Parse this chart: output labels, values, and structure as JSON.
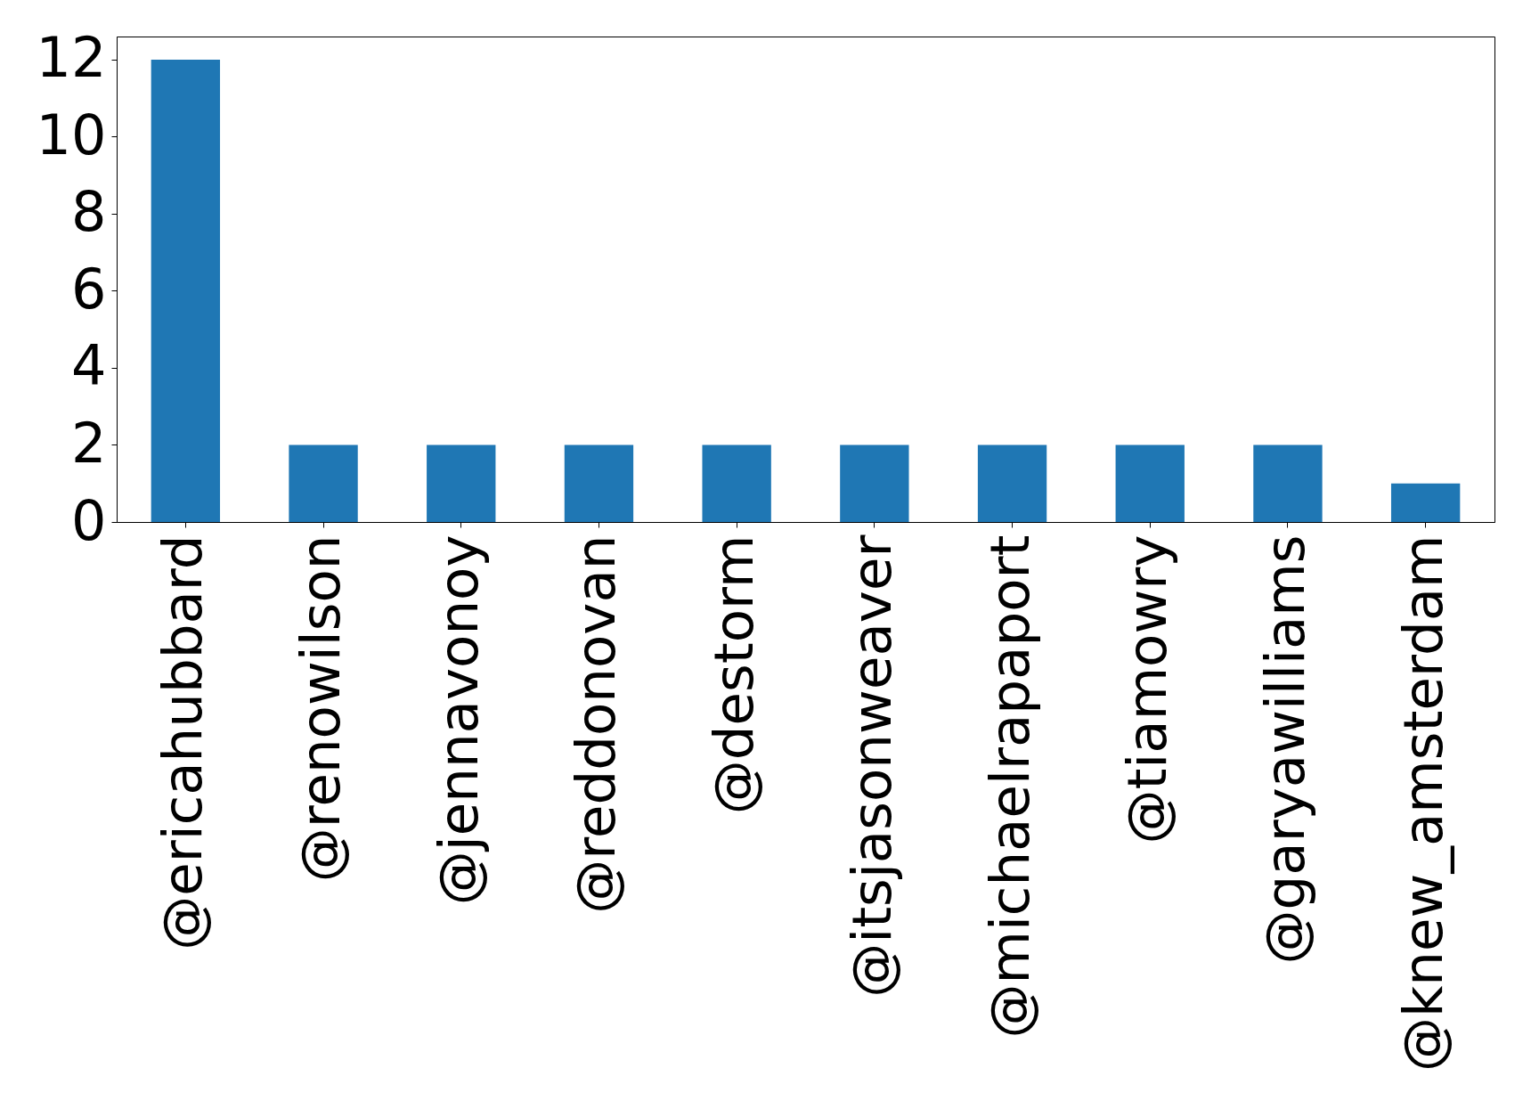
{
  "chart_data": {
    "type": "bar",
    "categories": [
      "@ericahubbard",
      "@renowilson",
      "@jennavonoy",
      "@reddonovan",
      "@destorm",
      "@itsjasonweaver",
      "@michaelrapaport",
      "@tiamowry",
      "@garyawilliams",
      "@knew_amsterdam"
    ],
    "values": [
      12,
      2,
      2,
      2,
      2,
      2,
      2,
      2,
      2,
      1
    ],
    "color": "#1f77b4",
    "ylim": [
      0,
      12.6
    ],
    "yticks": [
      0,
      2,
      4,
      6,
      8,
      10,
      12
    ],
    "grid": false
  }
}
